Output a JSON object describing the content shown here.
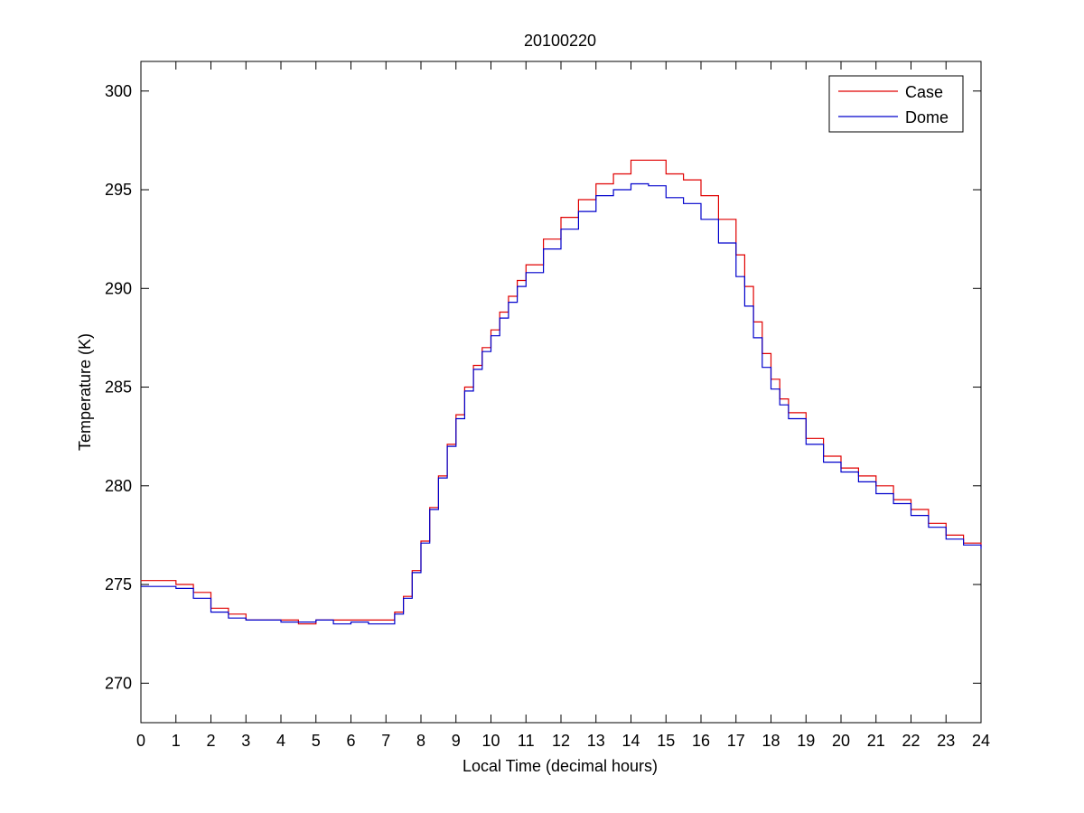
{
  "chart_data": {
    "type": "line",
    "title": "20100220",
    "xlabel": "Local Time (decimal hours)",
    "ylabel": "Temperature (K)",
    "xlim": [
      0,
      24
    ],
    "ylim": [
      268,
      301.5
    ],
    "xticks": [
      0,
      1,
      2,
      3,
      4,
      5,
      6,
      7,
      8,
      9,
      10,
      11,
      12,
      13,
      14,
      15,
      16,
      17,
      18,
      19,
      20,
      21,
      22,
      23,
      24
    ],
    "yticks": [
      270,
      275,
      280,
      285,
      290,
      295,
      300
    ],
    "grid": false,
    "legend_position": "top-right",
    "series": [
      {
        "name": "Case",
        "color": "#e00000",
        "x": [
          0,
          0.5,
          1.0,
          1.5,
          2.0,
          2.5,
          3.0,
          3.5,
          4.0,
          4.5,
          5.0,
          5.5,
          6.0,
          6.5,
          7.0,
          7.25,
          7.5,
          7.75,
          8.0,
          8.25,
          8.5,
          8.75,
          9.0,
          9.25,
          9.5,
          9.75,
          10.0,
          10.25,
          10.5,
          10.75,
          11.0,
          11.5,
          12.0,
          12.5,
          13.0,
          13.5,
          14.0,
          14.5,
          15.0,
          15.5,
          16.0,
          16.5,
          17.0,
          17.25,
          17.5,
          17.75,
          18.0,
          18.25,
          18.5,
          19.0,
          19.5,
          20.0,
          20.5,
          21.0,
          21.5,
          22.0,
          22.5,
          23.0,
          23.5,
          24.0
        ],
        "y": [
          275.2,
          275.2,
          275.0,
          274.6,
          273.8,
          273.5,
          273.2,
          273.2,
          273.2,
          273.0,
          273.2,
          273.2,
          273.2,
          273.2,
          273.2,
          273.6,
          274.4,
          275.7,
          277.2,
          278.9,
          280.5,
          282.1,
          283.6,
          285.0,
          286.1,
          287.0,
          287.9,
          288.8,
          289.6,
          290.4,
          291.2,
          292.5,
          293.6,
          294.5,
          295.3,
          295.8,
          296.5,
          296.5,
          295.8,
          295.5,
          294.7,
          293.5,
          291.7,
          290.1,
          288.3,
          286.7,
          285.4,
          284.4,
          283.7,
          282.4,
          281.5,
          280.9,
          280.5,
          280.0,
          279.3,
          278.8,
          278.1,
          277.5,
          277.1,
          276.9
        ]
      },
      {
        "name": "Dome",
        "color": "#0000cc",
        "x": [
          0,
          0.5,
          1.0,
          1.5,
          2.0,
          2.5,
          3.0,
          3.5,
          4.0,
          4.5,
          5.0,
          5.5,
          6.0,
          6.5,
          7.0,
          7.25,
          7.5,
          7.75,
          8.0,
          8.25,
          8.5,
          8.75,
          9.0,
          9.25,
          9.5,
          9.75,
          10.0,
          10.25,
          10.5,
          10.75,
          11.0,
          11.5,
          12.0,
          12.5,
          13.0,
          13.5,
          14.0,
          14.5,
          15.0,
          15.5,
          16.0,
          16.5,
          17.0,
          17.25,
          17.5,
          17.75,
          18.0,
          18.25,
          18.5,
          19.0,
          19.5,
          20.0,
          20.5,
          21.0,
          21.5,
          22.0,
          22.5,
          23.0,
          23.5,
          24.0
        ],
        "y": [
          274.9,
          274.9,
          274.8,
          274.3,
          273.6,
          273.3,
          273.2,
          273.2,
          273.1,
          273.1,
          273.2,
          273.0,
          273.1,
          273.0,
          273.0,
          273.5,
          274.3,
          275.6,
          277.1,
          278.8,
          280.4,
          282.0,
          283.4,
          284.8,
          285.9,
          286.8,
          287.6,
          288.5,
          289.3,
          290.1,
          290.8,
          292.0,
          293.0,
          293.9,
          294.7,
          295.0,
          295.3,
          295.2,
          294.6,
          294.3,
          293.5,
          292.3,
          290.6,
          289.1,
          287.5,
          286.0,
          284.9,
          284.1,
          283.4,
          282.1,
          281.2,
          280.7,
          280.2,
          279.6,
          279.1,
          278.5,
          277.9,
          277.3,
          277.0,
          276.8
        ]
      }
    ]
  }
}
